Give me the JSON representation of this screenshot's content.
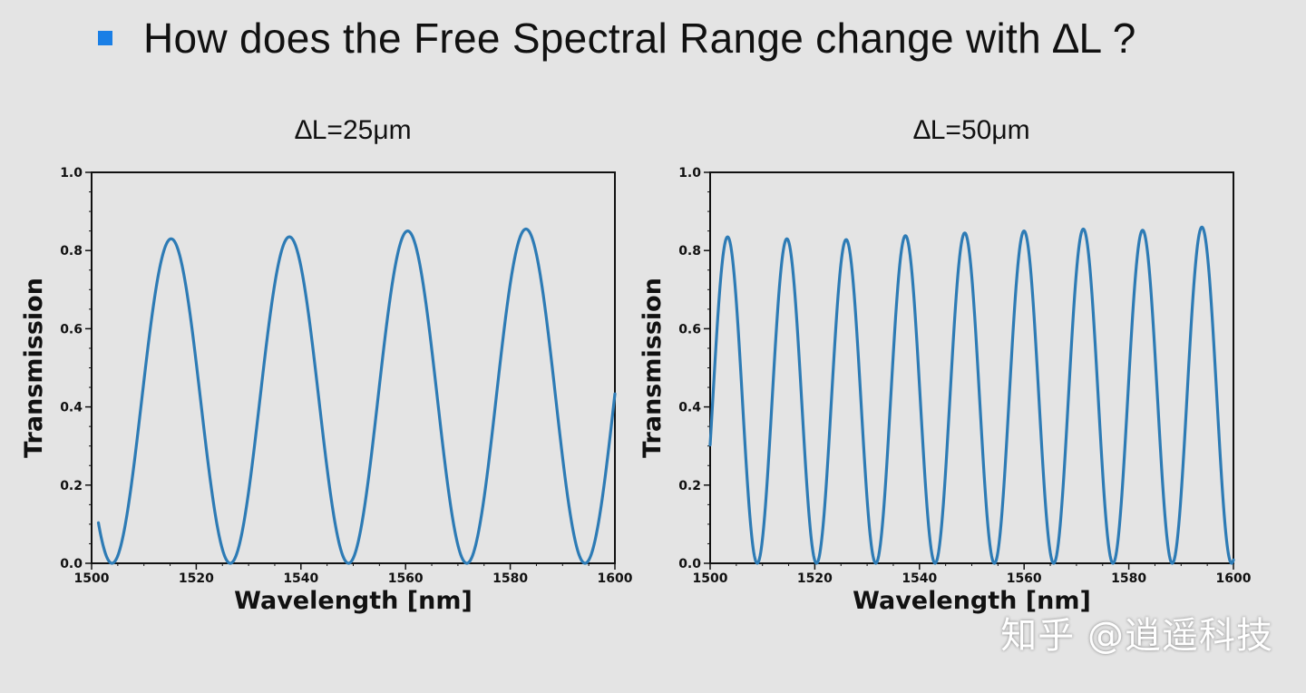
{
  "slide": {
    "heading": "How does the Free Spectral Range change with ∆L ?",
    "watermark": "知乎 @逍遥科技"
  },
  "colors": {
    "series": "#2d7bb5",
    "bullet": "#1a7fe6",
    "background": "#e4e4e4"
  },
  "chart_data": [
    {
      "type": "line",
      "title": "∆L=25μm",
      "xlabel": "Wavelength [nm]",
      "ylabel": "Transmission",
      "xlim": [
        1500,
        1600
      ],
      "ylim": [
        0.0,
        1.0
      ],
      "xticks": [
        1500,
        1520,
        1540,
        1560,
        1580,
        1600
      ],
      "yticks": [
        0.0,
        0.2,
        0.4,
        0.6,
        0.8,
        1.0
      ],
      "xtick_labels": [
        "1500",
        "1520",
        "1540",
        "1560",
        "1580",
        "1600"
      ],
      "ytick_labels": [
        "0.0",
        "0.2",
        "0.4",
        "0.6",
        "0.8",
        "1.0"
      ],
      "x_start": 1501.3,
      "x_end": 1600,
      "fsr_nm": 22.6,
      "first_min_nm": 1503.9,
      "peaks": [
        {
          "x": 1515.2,
          "y": 0.83
        },
        {
          "x": 1537.1,
          "y": 0.835
        },
        {
          "x": 1560.0,
          "y": 0.85
        },
        {
          "x": 1583.5,
          "y": 0.855
        }
      ],
      "minima": [
        1503.9,
        1526.0,
        1548.7,
        1571.4,
        1594.7
      ]
    },
    {
      "type": "line",
      "title": "∆L=50μm",
      "xlabel": "Wavelength [nm]",
      "ylabel": "Transmission",
      "xlim": [
        1500,
        1600
      ],
      "ylim": [
        0.0,
        1.0
      ],
      "xticks": [
        1500,
        1520,
        1540,
        1560,
        1580,
        1600
      ],
      "yticks": [
        0.0,
        0.2,
        0.4,
        0.6,
        0.8,
        1.0
      ],
      "xtick_labels": [
        "1500",
        "1520",
        "1540",
        "1560",
        "1580",
        "1600"
      ],
      "ytick_labels": [
        "0.0",
        "0.2",
        "0.4",
        "0.6",
        "0.8",
        "1.0"
      ],
      "x_start": 1500,
      "x_end": 1600,
      "fsr_nm": 11.33,
      "first_min_nm": 1509.0,
      "peaks": [
        {
          "x": 1503.3,
          "y": 0.835
        },
        {
          "x": 1514.4,
          "y": 0.83
        },
        {
          "x": 1525.4,
          "y": 0.828
        },
        {
          "x": 1536.6,
          "y": 0.838
        },
        {
          "x": 1547.9,
          "y": 0.845
        },
        {
          "x": 1559.3,
          "y": 0.85
        },
        {
          "x": 1570.8,
          "y": 0.855
        },
        {
          "x": 1582.3,
          "y": 0.852
        },
        {
          "x": 1594.2,
          "y": 0.86
        }
      ],
      "minima": [
        1509.0,
        1520.0,
        1530.9,
        1542.2,
        1553.6,
        1565.1,
        1576.6,
        1588.4
      ]
    }
  ]
}
